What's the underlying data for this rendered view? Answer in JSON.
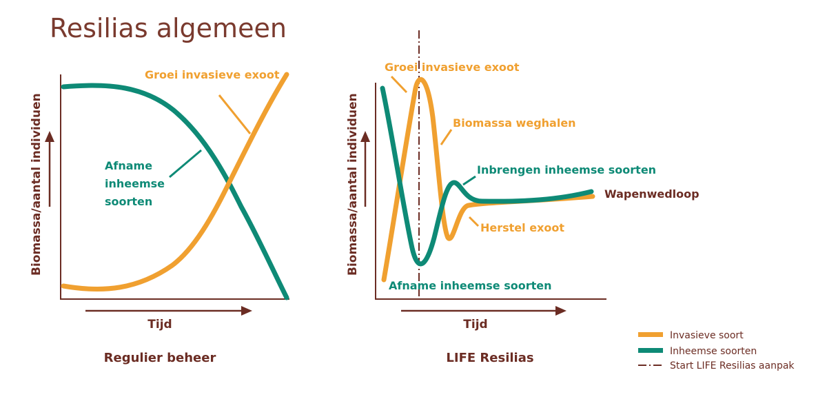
{
  "title": "Resilias algemeen",
  "colors": {
    "invasive": "#f0a030",
    "native": "#0e8a76",
    "text_brown": "#6b2c23",
    "title": "#7a3a2e"
  },
  "left_panel": {
    "y_axis_label": "Biomassa/aantal individuen",
    "x_axis_label": "Tijd",
    "caption": "Regulier beheer",
    "annotation_invasive": "Groei invasieve exoot",
    "annotation_native": [
      "Afname",
      "inheemse",
      "soorten"
    ]
  },
  "right_panel": {
    "y_axis_label": "Biomassa/aantal individuen",
    "x_axis_label": "Tijd",
    "caption": "LIFE Resilias",
    "annotation_growth": "Groei invasieve exoot",
    "annotation_removal": "Biomassa weghalen",
    "annotation_introduce": "Inbrengen inheemse soorten",
    "annotation_arms_race": "Wapenwedloop",
    "annotation_recovery": "Herstel exoot",
    "annotation_decline": "Afname inheemse soorten"
  },
  "legend": {
    "items": [
      {
        "label": "Invasieve soort",
        "color": "#f0a030",
        "style": "solid"
      },
      {
        "label": "Inheemse soorten",
        "color": "#0e8a76",
        "style": "solid"
      },
      {
        "label": "Start LIFE Resilias aanpak",
        "color": "#6b2c23",
        "style": "dash-dot"
      }
    ]
  }
}
